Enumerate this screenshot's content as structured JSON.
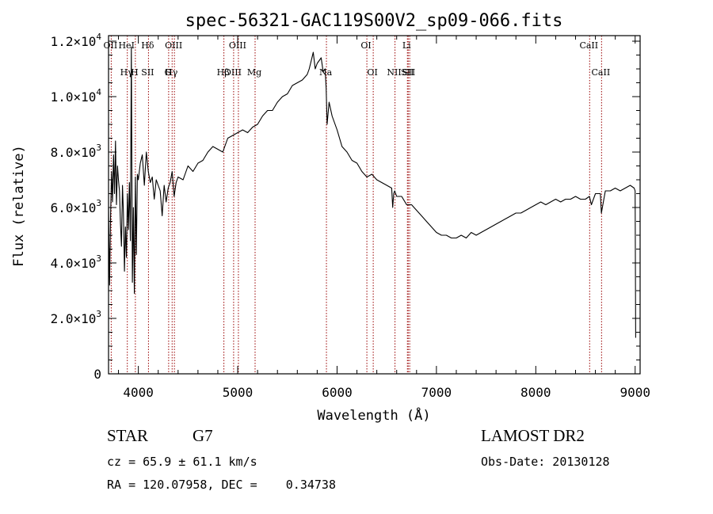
{
  "chart_data": {
    "type": "line",
    "title": "spec-56321-GAC119S00V2_sp09-066.fits",
    "xlabel": "Wavelength (Å)",
    "ylabel": "Flux (relative)",
    "xlim": [
      3700,
      9050
    ],
    "ylim": [
      0,
      12200
    ],
    "grid": false,
    "x_ticks": [
      {
        "value": 4000,
        "label": "4000"
      },
      {
        "value": 5000,
        "label": "5000"
      },
      {
        "value": 6000,
        "label": "6000"
      },
      {
        "value": 7000,
        "label": "7000"
      },
      {
        "value": 8000,
        "label": "8000"
      },
      {
        "value": 9000,
        "label": "9000"
      }
    ],
    "y_ticks": [
      {
        "value": 0,
        "mant": "0",
        "exp": ""
      },
      {
        "value": 2000,
        "mant": "2.0×10",
        "exp": "3"
      },
      {
        "value": 4000,
        "mant": "4.0×10",
        "exp": "3"
      },
      {
        "value": 6000,
        "mant": "6.0×10",
        "exp": "3"
      },
      {
        "value": 8000,
        "mant": "8.0×10",
        "exp": "3"
      },
      {
        "value": 10000,
        "mant": "1.0×10",
        "exp": "4"
      },
      {
        "value": 12000,
        "mant": "1.2×10",
        "exp": "4"
      }
    ],
    "series": [
      {
        "color": "#000000",
        "x": [
          3700,
          3710,
          3720,
          3730,
          3740,
          3750,
          3760,
          3770,
          3780,
          3790,
          3800,
          3810,
          3820,
          3830,
          3840,
          3850,
          3860,
          3870,
          3880,
          3890,
          3900,
          3910,
          3920,
          3930,
          3940,
          3950,
          3960,
          3970,
          3980,
          3990,
          4000,
          4020,
          4040,
          4060,
          4080,
          4100,
          4120,
          4140,
          4160,
          4180,
          4200,
          4220,
          4240,
          4260,
          4280,
          4300,
          4320,
          4340,
          4360,
          4380,
          4400,
          4450,
          4500,
          4550,
          4600,
          4650,
          4700,
          4750,
          4800,
          4850,
          4900,
          4950,
          5000,
          5050,
          5100,
          5150,
          5200,
          5250,
          5300,
          5350,
          5400,
          5450,
          5500,
          5550,
          5600,
          5650,
          5700,
          5720,
          5740,
          5760,
          5780,
          5800,
          5820,
          5840,
          5860,
          5880,
          5890,
          5900,
          5920,
          5950,
          6000,
          6050,
          6100,
          6150,
          6200,
          6250,
          6300,
          6350,
          6400,
          6450,
          6500,
          6550,
          6560,
          6570,
          6580,
          6600,
          6650,
          6700,
          6750,
          6800,
          6850,
          6900,
          6950,
          7000,
          7050,
          7100,
          7150,
          7200,
          7250,
          7300,
          7350,
          7400,
          7450,
          7500,
          7550,
          7600,
          7650,
          7700,
          7750,
          7800,
          7850,
          7900,
          7950,
          8000,
          8050,
          8100,
          8150,
          8200,
          8250,
          8300,
          8350,
          8400,
          8450,
          8500,
          8540,
          8560,
          8600,
          8650,
          8660,
          8700,
          8750,
          8800,
          8850,
          8900,
          8950,
          8990,
          9000,
          9005
        ],
        "y": [
          6000,
          3200,
          5600,
          7300,
          6200,
          7900,
          6500,
          8400,
          6100,
          7500,
          7000,
          6600,
          5400,
          4600,
          6800,
          5800,
          3700,
          5300,
          4200,
          6500,
          5200,
          6900,
          4800,
          11800,
          3300,
          6000,
          2900,
          7100,
          4300,
          7200,
          7000,
          7600,
          7900,
          6800,
          8000,
          7300,
          6900,
          7100,
          6300,
          7000,
          6800,
          6600,
          5700,
          6800,
          6200,
          6700,
          6900,
          7300,
          6400,
          6900,
          7100,
          7000,
          7500,
          7300,
          7600,
          7700,
          8000,
          8200,
          8100,
          8000,
          8500,
          8600,
          8700,
          8800,
          8700,
          8900,
          9000,
          9300,
          9500,
          9500,
          9800,
          10000,
          10100,
          10400,
          10500,
          10600,
          10800,
          11000,
          11300,
          11600,
          11000,
          11200,
          11300,
          11400,
          10900,
          11000,
          10300,
          9000,
          9800,
          9300,
          8800,
          8200,
          8000,
          7700,
          7600,
          7300,
          7100,
          7200,
          7000,
          6900,
          6800,
          6700,
          6000,
          6500,
          6600,
          6400,
          6400,
          6100,
          6100,
          5900,
          5700,
          5500,
          5300,
          5100,
          5000,
          5000,
          4900,
          4900,
          5000,
          4900,
          5100,
          5000,
          5100,
          5200,
          5300,
          5400,
          5500,
          5600,
          5700,
          5800,
          5800,
          5900,
          6000,
          6100,
          6200,
          6100,
          6200,
          6300,
          6200,
          6300,
          6300,
          6400,
          6300,
          6300,
          6400,
          6100,
          6500,
          6500,
          5800,
          6600,
          6600,
          6700,
          6600,
          6700,
          6800,
          6700,
          6600,
          1300
        ]
      }
    ],
    "lines": [
      {
        "x": 3727,
        "upper": "OII",
        "lower": ""
      },
      {
        "x": 3889,
        "upper": "HeI",
        "lower": "Hγ"
      },
      {
        "x": 3970,
        "upper": "",
        "lower": "H"
      },
      {
        "x": 4102,
        "upper": "Hδ",
        "lower": "SII"
      },
      {
        "x": 4305,
        "upper": "",
        "lower": "G"
      },
      {
        "x": 4340,
        "upper": "",
        "lower": "Hγ"
      },
      {
        "x": 4363,
        "upper": "OIII",
        "lower": ""
      },
      {
        "x": 4861,
        "upper": "",
        "lower": "Hβ"
      },
      {
        "x": 4959,
        "upper": "",
        "lower": "OIII"
      },
      {
        "x": 5007,
        "upper": "OIII",
        "lower": ""
      },
      {
        "x": 5175,
        "upper": "",
        "lower": "Mg"
      },
      {
        "x": 5893,
        "upper": "",
        "lower": "Na"
      },
      {
        "x": 6300,
        "upper": "OI",
        "lower": ""
      },
      {
        "x": 6364,
        "upper": "",
        "lower": "OI"
      },
      {
        "x": 6583,
        "upper": "",
        "lower": "NII"
      },
      {
        "x": 6708,
        "upper": "Li",
        "lower": ""
      },
      {
        "x": 6716,
        "upper": "",
        "lower": "SII"
      },
      {
        "x": 6731,
        "upper": "",
        "lower": "SII"
      },
      {
        "x": 8542,
        "upper": "CaII",
        "lower": ""
      },
      {
        "x": 8662,
        "upper": "",
        "lower": "CaII"
      }
    ],
    "line_color": "#990000"
  },
  "info": {
    "class": "STAR",
    "subclass": "G7",
    "survey": "LAMOST DR2",
    "cz": "cz = 65.9 ± 61.1 km/s",
    "obs_date": "Obs-Date: 20130128",
    "radec": "RA = 120.07958, DEC =    0.34738"
  }
}
